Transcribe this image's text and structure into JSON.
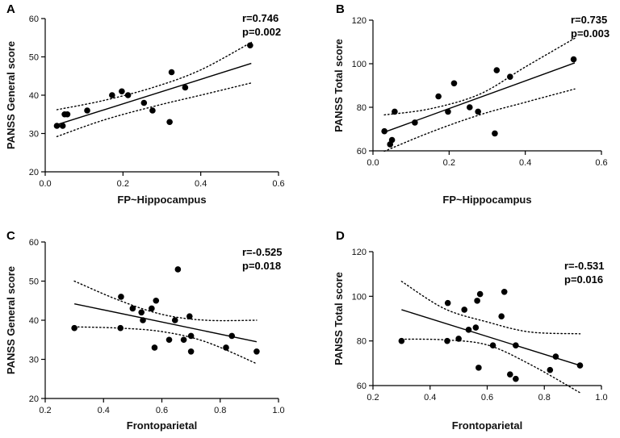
{
  "chart_data": [
    {
      "panel": "A",
      "type": "scatter",
      "xlabel": "FP~Hippocampus",
      "ylabel": "PANSS General score",
      "xlim": [
        0.0,
        0.6
      ],
      "ylim": [
        20,
        60
      ],
      "xticks": [
        "0.0",
        "0.2",
        "0.4",
        "0.6"
      ],
      "yticks": [
        "20",
        "30",
        "40",
        "50",
        "60"
      ],
      "annotations": [
        "r=0.746",
        "p=0.002"
      ],
      "fit": {
        "x": [
          0.03,
          0.53
        ],
        "y": [
          32.3,
          48.3
        ]
      },
      "ci_upper": {
        "x": [
          0.03,
          0.15,
          0.28,
          0.4,
          0.53
        ],
        "y": [
          36.2,
          38.6,
          42.1,
          46.6,
          53.8
        ]
      },
      "ci_lower": {
        "x": [
          0.03,
          0.15,
          0.28,
          0.4,
          0.53
        ],
        "y": [
          29.2,
          33.5,
          37.1,
          40.0,
          43.2
        ]
      },
      "points": {
        "x": [
          0.03,
          0.045,
          0.05,
          0.057,
          0.108,
          0.172,
          0.197,
          0.213,
          0.254,
          0.276,
          0.32,
          0.325,
          0.36,
          0.527
        ],
        "y": [
          32,
          32,
          35,
          35,
          36,
          40,
          41,
          40,
          38,
          36,
          33,
          46,
          42,
          53
        ]
      }
    },
    {
      "panel": "B",
      "type": "scatter",
      "xlabel": "FP~Hippocampus",
      "ylabel": "PANSS Total score",
      "xlim": [
        0.0,
        0.6
      ],
      "ylim": [
        60,
        120
      ],
      "xticks": [
        "0.0",
        "0.2",
        "0.4",
        "0.6"
      ],
      "yticks": [
        "60",
        "80",
        "100",
        "120"
      ],
      "annotations": [
        "r=0.735",
        "p=0.003"
      ],
      "fit": {
        "x": [
          0.03,
          0.53
        ],
        "y": [
          68.6,
          100.4
        ]
      },
      "ci_upper": {
        "x": [
          0.03,
          0.15,
          0.28,
          0.4,
          0.53
        ],
        "y": [
          76.5,
          79.3,
          86.0,
          98.5,
          111.7
        ]
      },
      "ci_lower": {
        "x": [
          0.03,
          0.15,
          0.28,
          0.4,
          0.53
        ],
        "y": [
          59.8,
          68.5,
          76.5,
          82.3,
          88.4
        ]
      },
      "points": {
        "x": [
          0.03,
          0.045,
          0.05,
          0.057,
          0.11,
          0.172,
          0.197,
          0.213,
          0.254,
          0.276,
          0.32,
          0.325,
          0.36,
          0.527
        ],
        "y": [
          69,
          63,
          65,
          78,
          73,
          85,
          78,
          91,
          80,
          78,
          68,
          97,
          94,
          102
        ]
      }
    },
    {
      "panel": "C",
      "type": "scatter",
      "xlabel": "Frontoparietal",
      "ylabel": "PANSS General score",
      "xlim": [
        0.2,
        1.0
      ],
      "ylim": [
        20,
        60
      ],
      "xticks": [
        "0.2",
        "0.4",
        "0.6",
        "0.8",
        "1.0"
      ],
      "yticks": [
        "20",
        "30",
        "40",
        "50",
        "60"
      ],
      "annotations": [
        "r=-0.525",
        "p=0.018"
      ],
      "fit": {
        "x": [
          0.3,
          0.925
        ],
        "y": [
          44.2,
          34.5
        ]
      },
      "ci_upper": {
        "x": [
          0.3,
          0.45,
          0.6,
          0.75,
          0.925
        ],
        "y": [
          50.0,
          45.2,
          41.5,
          40.0,
          40.0
        ]
      },
      "ci_lower": {
        "x": [
          0.3,
          0.45,
          0.6,
          0.75,
          0.925
        ],
        "y": [
          38.3,
          38.0,
          37.1,
          34.5,
          28.9
        ]
      },
      "points": {
        "x": [
          0.3,
          0.458,
          0.46,
          0.5,
          0.53,
          0.535,
          0.565,
          0.575,
          0.58,
          0.625,
          0.645,
          0.655,
          0.675,
          0.695,
          0.7,
          0.7,
          0.82,
          0.84,
          0.925
        ],
        "y": [
          38,
          38,
          46,
          43,
          42,
          40,
          43,
          33,
          45,
          35,
          40,
          53,
          35,
          41,
          36,
          32,
          33,
          36,
          32
        ]
      }
    },
    {
      "panel": "D",
      "type": "scatter",
      "xlabel": "Frontoparietal",
      "ylabel": "PANSS Total score",
      "xlim": [
        0.2,
        1.0
      ],
      "ylim": [
        60,
        120
      ],
      "xticks": [
        "0.2",
        "0.4",
        "0.6",
        "0.8",
        "1.0"
      ],
      "yticks": [
        "60",
        "80",
        "100",
        "120"
      ],
      "annotations": [
        "r=-0.531",
        "p=0.016"
      ],
      "fit": {
        "x": [
          0.3,
          0.925
        ],
        "y": [
          94.0,
          69.0
        ]
      },
      "ci_upper": {
        "x": [
          0.3,
          0.45,
          0.6,
          0.75,
          0.925
        ],
        "y": [
          106.7,
          94.5,
          88.5,
          84.0,
          83.2
        ]
      },
      "ci_lower": {
        "x": [
          0.3,
          0.45,
          0.6,
          0.75,
          0.925
        ],
        "y": [
          80.8,
          80.5,
          78.2,
          69.5,
          56.8
        ]
      },
      "points": {
        "x": [
          0.3,
          0.46,
          0.462,
          0.5,
          0.52,
          0.535,
          0.56,
          0.565,
          0.57,
          0.575,
          0.62,
          0.65,
          0.66,
          0.68,
          0.7,
          0.7,
          0.82,
          0.84,
          0.925
        ],
        "y": [
          80,
          80,
          97,
          81,
          94,
          85,
          86,
          98,
          68,
          101,
          78,
          91,
          102,
          65,
          63,
          78,
          67,
          73,
          69
        ]
      }
    }
  ]
}
